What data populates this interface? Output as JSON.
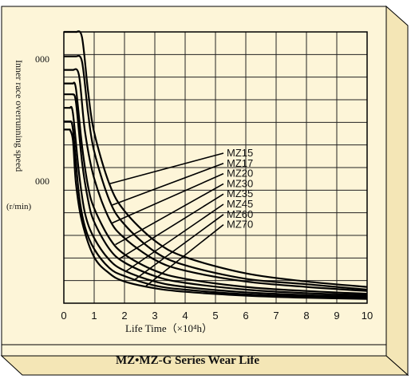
{
  "caption": "MZ•MZ-G Series Wear Life",
  "colors": {
    "panel": "#fdf5d8",
    "panel_side": "#f4e6b6",
    "ink": "#111111",
    "frame": "#000000"
  },
  "chart_data": {
    "type": "line",
    "xlabel": "Life Time（×10⁴h）",
    "ylabel_line1": "Inner race overrunning speed",
    "ylabel_line2": "(r/min)",
    "xlim": [
      0,
      10
    ],
    "x_ticks": [
      "0",
      "1",
      "2",
      "3",
      "4",
      "5",
      "6",
      "7",
      "8",
      "9",
      "10"
    ],
    "y_tick_labels": [
      "000",
      "000"
    ],
    "grid": true,
    "legend_placement": "center-right",
    "series": [
      {
        "name": "MZ15",
        "x": [
          0.4,
          0.6,
          0.8,
          1.0,
          1.5,
          2.0,
          3.0,
          4.0,
          6.0,
          8.0,
          10.0
        ],
        "y": [
          1.0,
          0.98,
          0.78,
          0.63,
          0.44,
          0.34,
          0.23,
          0.17,
          0.11,
          0.08,
          0.06
        ]
      },
      {
        "name": "MZ17",
        "x": [
          0.4,
          0.6,
          0.8,
          1.0,
          1.5,
          2.0,
          3.0,
          4.0,
          6.0,
          8.0,
          10.0
        ],
        "y": [
          0.91,
          0.89,
          0.7,
          0.56,
          0.38,
          0.29,
          0.19,
          0.14,
          0.09,
          0.07,
          0.05
        ]
      },
      {
        "name": "MZ20",
        "x": [
          0.3,
          0.5,
          0.7,
          1.0,
          1.5,
          2.0,
          3.0,
          4.0,
          6.0,
          8.0,
          10.0
        ],
        "y": [
          0.86,
          0.84,
          0.63,
          0.46,
          0.31,
          0.24,
          0.16,
          0.12,
          0.08,
          0.06,
          0.045
        ]
      },
      {
        "name": "MZ30",
        "x": [
          0.3,
          0.4,
          0.6,
          0.8,
          1.0,
          1.5,
          2.0,
          3.0,
          4.0,
          6.0,
          8.0,
          10.0
        ],
        "y": [
          0.81,
          0.79,
          0.58,
          0.43,
          0.35,
          0.24,
          0.18,
          0.12,
          0.09,
          0.06,
          0.045,
          0.035
        ]
      },
      {
        "name": "MZ35",
        "x": [
          0.3,
          0.4,
          0.6,
          0.8,
          1.0,
          1.5,
          2.0,
          3.0,
          4.0,
          6.0,
          8.0,
          10.0
        ],
        "y": [
          0.77,
          0.74,
          0.52,
          0.38,
          0.3,
          0.2,
          0.15,
          0.1,
          0.075,
          0.05,
          0.037,
          0.03
        ]
      },
      {
        "name": "MZ45",
        "x": [
          0.2,
          0.3,
          0.5,
          0.7,
          1.0,
          1.5,
          2.0,
          3.0,
          4.0,
          6.0,
          8.0,
          10.0
        ],
        "y": [
          0.72,
          0.7,
          0.48,
          0.33,
          0.24,
          0.16,
          0.12,
          0.08,
          0.06,
          0.04,
          0.03,
          0.025
        ]
      },
      {
        "name": "MZ60",
        "x": [
          0.2,
          0.3,
          0.5,
          0.7,
          1.0,
          1.5,
          2.0,
          3.0,
          4.0,
          6.0,
          8.0,
          10.0
        ],
        "y": [
          0.67,
          0.64,
          0.4,
          0.28,
          0.2,
          0.13,
          0.1,
          0.065,
          0.05,
          0.033,
          0.025,
          0.02
        ]
      },
      {
        "name": "MZ70",
        "x": [
          0.2,
          0.3,
          0.4,
          0.6,
          1.0,
          1.5,
          2.0,
          3.0,
          4.0,
          6.0,
          8.0,
          10.0
        ],
        "y": [
          0.64,
          0.6,
          0.44,
          0.3,
          0.17,
          0.11,
          0.08,
          0.055,
          0.042,
          0.028,
          0.02,
          0.016
        ]
      }
    ]
  }
}
